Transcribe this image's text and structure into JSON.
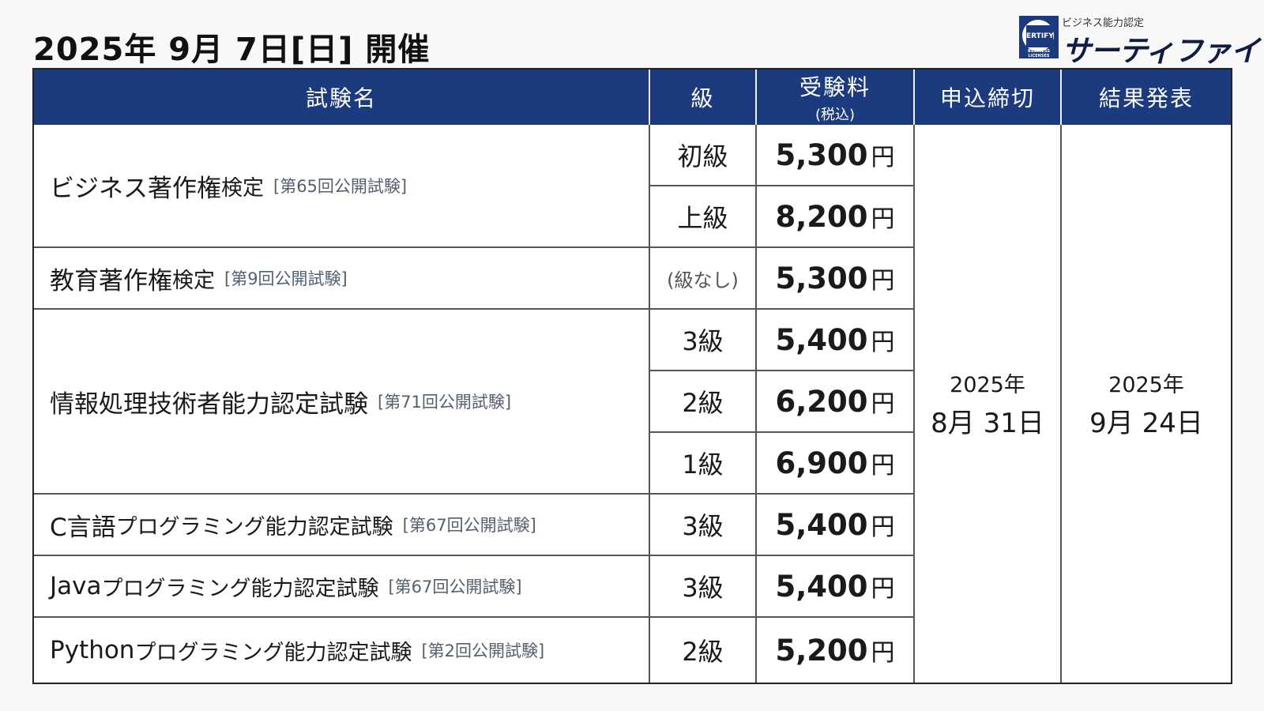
{
  "title": "2025年 9月 7日[日] 開催",
  "logo": {
    "tagline": "ビジネス能力認定",
    "name": "サーティファイ",
    "mark_text": "ERTIFY",
    "mark_sub": "BUSINESS LICENSES"
  },
  "headers": {
    "exam_name": "試験名",
    "grade": "級",
    "fee": "受験料",
    "fee_sub": "(税込)",
    "deadline": "申込締切",
    "result": "結果発表"
  },
  "exams": [
    {
      "name": "ビジネス著作権",
      "suffix": "検定",
      "session": "[第65回公開試験]"
    },
    {
      "name": "教育著作権",
      "suffix": "検定",
      "session": "[第9回公開試験]"
    },
    {
      "name": "情報処理技術者能力認定試験",
      "suffix": "",
      "session": "[第71回公開試験]"
    },
    {
      "name": "C言語",
      "suffix": "プログラミング能力認定試験",
      "session": "[第67回公開試験]"
    },
    {
      "name": "Java",
      "suffix": "プログラミング能力認定試験",
      "session": "[第67回公開試験]"
    },
    {
      "name": "Python",
      "suffix": "プログラミング能力認定試験",
      "session": "[第2回公開試験]"
    }
  ],
  "rows": [
    {
      "grade": "初級",
      "fee": "5,300"
    },
    {
      "grade": "上級",
      "fee": "8,200"
    },
    {
      "grade": "(級なし)",
      "fee": "5,300"
    },
    {
      "grade": "3級",
      "fee": "5,400"
    },
    {
      "grade": "2級",
      "fee": "6,200"
    },
    {
      "grade": "1級",
      "fee": "6,900"
    },
    {
      "grade": "3級",
      "fee": "5,400"
    },
    {
      "grade": "3級",
      "fee": "5,400"
    },
    {
      "grade": "2級",
      "fee": "5,200"
    }
  ],
  "yen": "円",
  "deadline": {
    "year": "2025年",
    "date": "8月 31日"
  },
  "result": {
    "year": "2025年",
    "date": "9月 24日"
  }
}
